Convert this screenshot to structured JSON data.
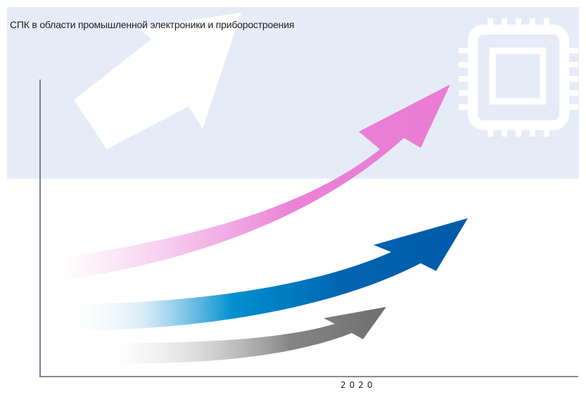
{
  "title": "СПК в области промышленной электроники и приборостроения",
  "year_label": "2020",
  "colors": {
    "banner_background": "#E6ECF7",
    "axis": "#5A6478",
    "arrow_top": "#E97CD3",
    "arrow_middle": "#0063B0",
    "arrow_bottom": "#707070",
    "decor": "#FFFFFF"
  },
  "icons": {
    "chip": "microchip-icon",
    "growth": "arrow-up-right-icon"
  },
  "arrows": [
    {
      "id": "top",
      "color_key": "arrow_top"
    },
    {
      "id": "middle",
      "color_key": "arrow_middle"
    },
    {
      "id": "bottom",
      "color_key": "arrow_bottom"
    }
  ]
}
